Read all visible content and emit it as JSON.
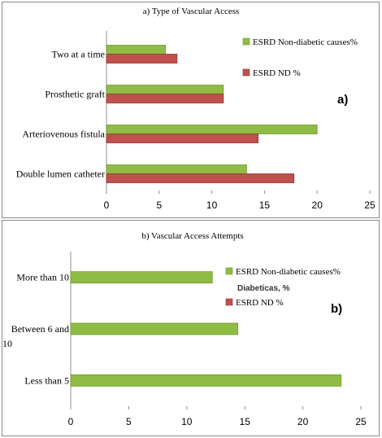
{
  "chart_data": [
    {
      "type": "bar",
      "orientation": "horizontal",
      "title": "a) Type of Vascular Access",
      "panel_tag": "a)",
      "categories": [
        "Double lumen catheter",
        "Arteriovenous fistula",
        "Prosthetic graft",
        "Two at a time"
      ],
      "series": [
        {
          "name": "ESRD Non-diabetic causes%",
          "color": "#8fbc45",
          "values": [
            13.3,
            20.0,
            11.1,
            5.6
          ]
        },
        {
          "name": "ESRD ND %",
          "color": "#c0504d",
          "values": [
            17.8,
            14.4,
            11.1,
            6.7
          ]
        }
      ],
      "xlim": [
        0,
        25
      ],
      "xticks": [
        "0",
        "5",
        "10",
        "15",
        "20",
        "25"
      ],
      "legend_position": "top-right"
    },
    {
      "type": "bar",
      "orientation": "horizontal",
      "title": "b) Vascular Access Attempts",
      "panel_tag": "b)",
      "categories": [
        "Less than 5",
        "Between 6 and 10",
        "More than 10"
      ],
      "category_labels": [
        [
          "Less than 5"
        ],
        [
          "Between 6 and",
          "10"
        ],
        [
          "More than 10"
        ]
      ],
      "series": [
        {
          "name": "ESRD Non-diabetic causes%",
          "color": "#8fbc45",
          "values": [
            23.3,
            14.4,
            12.2
          ]
        }
      ],
      "legend_entries": [
        {
          "label": "ESRD Non-diabetic causes%",
          "color": "#8fbc45"
        },
        {
          "label": "ESRD ND %",
          "color": "#c0504d"
        }
      ],
      "overlapping_text": "Diabeticas, %",
      "xlim": [
        0,
        25
      ],
      "xticks": [
        "0",
        "5",
        "10",
        "15",
        "20",
        "25"
      ],
      "legend_position": "top-right"
    }
  ]
}
